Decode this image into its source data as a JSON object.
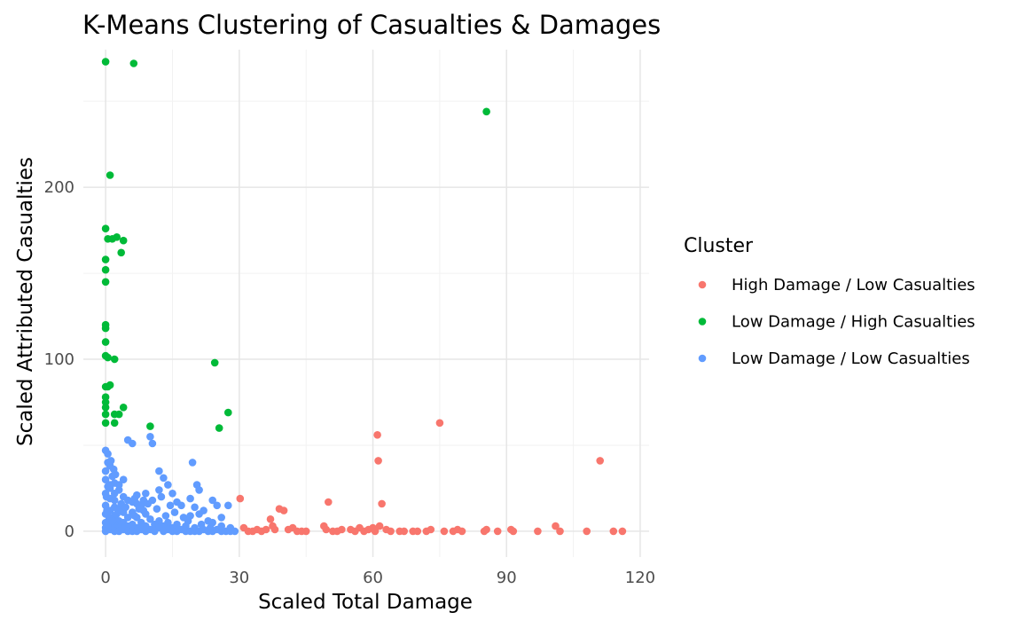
{
  "chart_data": {
    "type": "scatter",
    "title": "K-Means Clustering of Casualties & Damages",
    "xlabel": "Scaled Total Damage",
    "ylabel": "Scaled Attributed Casualties",
    "xlim": [
      -5,
      122
    ],
    "ylim": [
      -15,
      280
    ],
    "x_ticks": [
      0,
      30,
      60,
      90,
      120
    ],
    "y_ticks": [
      0,
      100,
      200
    ],
    "x_tick_labels": [
      "0",
      "30",
      "60",
      "90",
      "120"
    ],
    "y_tick_labels": [
      "0",
      "100",
      "200"
    ],
    "grid": true,
    "legend": {
      "title": "Cluster",
      "position": "right"
    },
    "series": [
      {
        "name": "High Damage / Low Casualties",
        "color": "#F8766D",
        "points": [
          [
            30.2,
            19
          ],
          [
            31,
            2
          ],
          [
            32,
            0
          ],
          [
            33,
            0
          ],
          [
            34,
            1
          ],
          [
            35,
            0
          ],
          [
            36,
            1
          ],
          [
            37,
            7
          ],
          [
            37.5,
            3
          ],
          [
            38,
            1
          ],
          [
            39,
            13
          ],
          [
            40,
            12
          ],
          [
            41,
            1
          ],
          [
            42,
            2
          ],
          [
            43,
            0
          ],
          [
            44,
            0
          ],
          [
            45,
            0
          ],
          [
            49,
            3
          ],
          [
            49.5,
            1
          ],
          [
            50,
            17
          ],
          [
            51,
            0
          ],
          [
            52,
            0
          ],
          [
            53,
            1
          ],
          [
            55,
            1
          ],
          [
            56,
            0
          ],
          [
            57,
            2
          ],
          [
            58,
            0
          ],
          [
            59,
            1
          ],
          [
            60,
            2
          ],
          [
            60.5,
            0
          ],
          [
            61,
            56
          ],
          [
            61.2,
            41
          ],
          [
            61.5,
            3
          ],
          [
            62,
            16
          ],
          [
            63,
            1
          ],
          [
            64,
            0
          ],
          [
            66,
            0
          ],
          [
            67,
            0
          ],
          [
            69,
            0
          ],
          [
            70,
            0
          ],
          [
            72,
            0
          ],
          [
            73,
            1
          ],
          [
            75,
            63
          ],
          [
            76,
            0
          ],
          [
            78,
            0
          ],
          [
            79,
            1
          ],
          [
            80,
            0
          ],
          [
            85,
            0
          ],
          [
            85.5,
            1
          ],
          [
            88,
            0
          ],
          [
            91,
            1
          ],
          [
            91.5,
            0
          ],
          [
            97,
            0
          ],
          [
            101,
            3
          ],
          [
            102,
            0
          ],
          [
            108,
            0
          ],
          [
            111,
            41
          ],
          [
            114,
            0
          ],
          [
            116,
            0
          ]
        ]
      },
      {
        "name": "Low Damage / High Casualties",
        "color": "#00BA38",
        "points": [
          [
            0,
            273
          ],
          [
            6.3,
            272
          ],
          [
            85.5,
            244
          ],
          [
            1,
            207
          ],
          [
            0,
            176
          ],
          [
            0.5,
            170
          ],
          [
            1.5,
            170
          ],
          [
            2.5,
            171
          ],
          [
            4,
            169
          ],
          [
            3.5,
            162
          ],
          [
            0,
            158
          ],
          [
            0,
            152
          ],
          [
            0,
            145
          ],
          [
            0,
            120
          ],
          [
            0,
            118
          ],
          [
            0,
            110
          ],
          [
            0,
            102
          ],
          [
            0.5,
            101
          ],
          [
            2,
            100
          ],
          [
            24.5,
            98
          ],
          [
            0,
            84
          ],
          [
            1,
            85
          ],
          [
            0.5,
            84
          ],
          [
            0,
            78
          ],
          [
            0,
            75
          ],
          [
            0,
            72
          ],
          [
            4,
            72
          ],
          [
            3,
            68
          ],
          [
            0,
            68
          ],
          [
            2,
            68
          ],
          [
            27.5,
            69
          ],
          [
            0,
            63
          ],
          [
            2,
            63
          ],
          [
            10,
            61
          ],
          [
            25.5,
            60
          ]
        ]
      },
      {
        "name": "Low Damage / Low Casualties",
        "color": "#619CFF",
        "points": [
          [
            0,
            47
          ],
          [
            0.5,
            40
          ],
          [
            1,
            38
          ],
          [
            0,
            35
          ],
          [
            1.5,
            32
          ],
          [
            0,
            30
          ],
          [
            2,
            28
          ],
          [
            0.5,
            26
          ],
          [
            1,
            25
          ],
          [
            3,
            24
          ],
          [
            0,
            22
          ],
          [
            2,
            22
          ],
          [
            4,
            20
          ],
          [
            1,
            19
          ],
          [
            5,
            18
          ],
          [
            6,
            17
          ],
          [
            7,
            16
          ],
          [
            8,
            15
          ],
          [
            0,
            15
          ],
          [
            2,
            14
          ],
          [
            3,
            13
          ],
          [
            1,
            12
          ],
          [
            4,
            11
          ],
          [
            6,
            11
          ],
          [
            9,
            10
          ],
          [
            0,
            10
          ],
          [
            2,
            9
          ],
          [
            5,
            8
          ],
          [
            7,
            8
          ],
          [
            10,
            7
          ],
          [
            1,
            7
          ],
          [
            3,
            6
          ],
          [
            12,
            6
          ],
          [
            0,
            5
          ],
          [
            4,
            5
          ],
          [
            8,
            5
          ],
          [
            14,
            5
          ],
          [
            2,
            4
          ],
          [
            6,
            4
          ],
          [
            11,
            4
          ],
          [
            16,
            4
          ],
          [
            1,
            3
          ],
          [
            5,
            3
          ],
          [
            9,
            3
          ],
          [
            13,
            3
          ],
          [
            18,
            3
          ],
          [
            0,
            2
          ],
          [
            3,
            2
          ],
          [
            7,
            2
          ],
          [
            12,
            2
          ],
          [
            15,
            2
          ],
          [
            20,
            2
          ],
          [
            1,
            1
          ],
          [
            4,
            1
          ],
          [
            8,
            1
          ],
          [
            10,
            1
          ],
          [
            14,
            1
          ],
          [
            17,
            1
          ],
          [
            22,
            1
          ],
          [
            25,
            1
          ],
          [
            0,
            0
          ],
          [
            2,
            0
          ],
          [
            3,
            0
          ],
          [
            5,
            0
          ],
          [
            6,
            0
          ],
          [
            7,
            0
          ],
          [
            9,
            0
          ],
          [
            11,
            0
          ],
          [
            13,
            0
          ],
          [
            15,
            0
          ],
          [
            16,
            0
          ],
          [
            18,
            0
          ],
          [
            19,
            0
          ],
          [
            20,
            0
          ],
          [
            21,
            0
          ],
          [
            23,
            0
          ],
          [
            24,
            0
          ],
          [
            26,
            0
          ],
          [
            27,
            0
          ],
          [
            28,
            0
          ],
          [
            29,
            0
          ],
          [
            5,
            53
          ],
          [
            6,
            51
          ],
          [
            10,
            55
          ],
          [
            10.5,
            51
          ],
          [
            12,
            35
          ],
          [
            13,
            31
          ],
          [
            14,
            27
          ],
          [
            12,
            24
          ],
          [
            15,
            22
          ],
          [
            9,
            22
          ],
          [
            7,
            21
          ],
          [
            16,
            17
          ],
          [
            19.5,
            40
          ],
          [
            19,
            19
          ],
          [
            20.5,
            27
          ],
          [
            21,
            24
          ],
          [
            17,
            15
          ],
          [
            20,
            14
          ],
          [
            22,
            12
          ],
          [
            21,
            10
          ],
          [
            24,
            18
          ],
          [
            25,
            15
          ],
          [
            23,
            6
          ],
          [
            24,
            5
          ],
          [
            26,
            8
          ],
          [
            27.5,
            15
          ],
          [
            19,
            9
          ],
          [
            26,
            3
          ],
          [
            28,
            2
          ],
          [
            4,
            30
          ],
          [
            3,
            27
          ],
          [
            1,
            27
          ],
          [
            0.5,
            45
          ],
          [
            1.2,
            41
          ],
          [
            2,
            18
          ],
          [
            0.3,
            12
          ],
          [
            0.8,
            8
          ],
          [
            0.5,
            4
          ],
          [
            1.5,
            6
          ],
          [
            2.5,
            10
          ],
          [
            3.5,
            16
          ],
          [
            4.5,
            14
          ],
          [
            6.5,
            9
          ],
          [
            8.5,
            12
          ],
          [
            10.5,
            18
          ],
          [
            11.5,
            13
          ],
          [
            13.5,
            9
          ],
          [
            14.5,
            15
          ],
          [
            15.5,
            11
          ],
          [
            17.5,
            8
          ],
          [
            18.5,
            6
          ],
          [
            21.5,
            4
          ],
          [
            23.5,
            2
          ],
          [
            12.5,
            20
          ],
          [
            7.5,
            13
          ],
          [
            6.5,
            19
          ],
          [
            8.5,
            18
          ],
          [
            9.5,
            16
          ],
          [
            2.2,
            33
          ],
          [
            1.8,
            36
          ],
          [
            0.2,
            20
          ]
        ]
      }
    ]
  }
}
